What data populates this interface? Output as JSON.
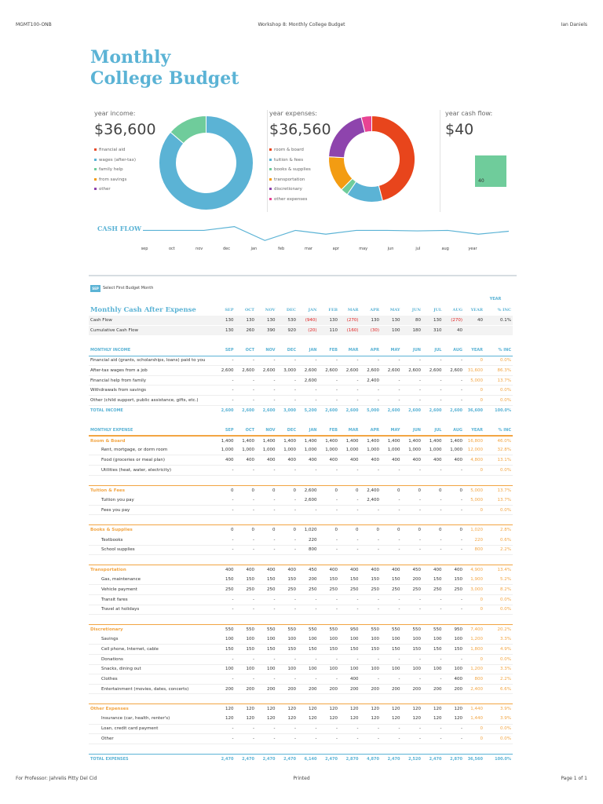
{
  "header": {
    "left": "MGMT100-ONB",
    "center": "Workshop 8: Monthly College Budget",
    "right": "Ian Daniels"
  },
  "title_line1": "Monthly",
  "title_line2": "College Budget",
  "income_panel": {
    "title": "year income:",
    "value": "$36,600",
    "legend": [
      "financial aid",
      "wages (after-tax)",
      "family help",
      "from savings",
      "other"
    ],
    "colors": [
      "#e74c2c",
      "#5bb3d5",
      "#6fcc9b",
      "#f39c12",
      "#8e44ad"
    ],
    "slices": [
      0,
      31600,
      5000,
      0,
      0
    ]
  },
  "expense_panel": {
    "title": "year expenses:",
    "value": "$36,560",
    "legend": [
      "room & board",
      "tuition & fees",
      "books & supplies",
      "transportation",
      "discretionary",
      "other expenses"
    ],
    "colors": [
      "#e8451c",
      "#5bb3d5",
      "#6fcc9b",
      "#f39c12",
      "#8e44ad",
      "#e84393"
    ],
    "slices": [
      16800,
      5000,
      1020,
      4900,
      7400,
      1440
    ]
  },
  "cashflow_panel": {
    "title": "year cash flow:",
    "value": "$40",
    "bar_value": "40",
    "bar_color": "#6fcc9b"
  },
  "cashflow_chart": {
    "label": "CASH FLOW",
    "months": [
      "sep",
      "oct",
      "nov",
      "dec",
      "jan",
      "feb",
      "mar",
      "apr",
      "may",
      "jun",
      "jul",
      "aug",
      "year"
    ],
    "values": [
      130,
      130,
      130,
      530,
      -940,
      130,
      -270,
      130,
      130,
      80,
      130,
      -270,
      40
    ]
  },
  "selector": {
    "box": "SEP",
    "label": "Select First Budget Month"
  },
  "year_header": "YEAR",
  "columns": [
    "SEP",
    "OCT",
    "NOV",
    "DEC",
    "JAN",
    "FEB",
    "MAR",
    "APR",
    "MAY",
    "JUN",
    "JUL",
    "AUG",
    "YEAR",
    "% INC"
  ],
  "sections": [
    {
      "type": "bigtitle",
      "label": "Monthly Cash After Expense"
    },
    {
      "type": "cf",
      "label": "Cash Flow",
      "cells": [
        "130",
        "130",
        "130",
        "530",
        "(940)",
        "130",
        "(270)",
        "130",
        "130",
        "80",
        "130",
        "(270)",
        "40",
        "0.1%"
      ]
    },
    {
      "type": "cf",
      "label": "Cumulative Cash Flow",
      "cells": [
        "130",
        "260",
        "390",
        "920",
        "(20)",
        "110",
        "(160)",
        "(30)",
        "100",
        "180",
        "310",
        "40",
        "",
        ""
      ]
    },
    {
      "type": "spacer"
    },
    {
      "type": "inchdr",
      "label": "MONTHLY INCOME"
    },
    {
      "type": "row",
      "label": "Financial aid (grants, scholarships, loans) paid to you",
      "cells": [
        "-",
        "-",
        "-",
        "-",
        "-",
        "-",
        "-",
        "-",
        "-",
        "-",
        "-",
        "-",
        "0",
        "0.0%"
      ]
    },
    {
      "type": "row",
      "label": "After-tax wages from a job",
      "cells": [
        "2,600",
        "2,600",
        "2,600",
        "3,000",
        "2,600",
        "2,600",
        "2,600",
        "2,600",
        "2,600",
        "2,600",
        "2,600",
        "2,600",
        "31,600",
        "86.3%"
      ]
    },
    {
      "type": "row",
      "label": "Financial help from family",
      "cells": [
        "-",
        "-",
        "-",
        "-",
        "2,600",
        "-",
        "-",
        "2,400",
        "-",
        "-",
        "-",
        "-",
        "5,000",
        "13.7%"
      ]
    },
    {
      "type": "row",
      "label": "Withdrawals from savings",
      "cells": [
        "-",
        "-",
        "-",
        "-",
        "-",
        "-",
        "-",
        "-",
        "-",
        "-",
        "-",
        "-",
        "0",
        "0.0%"
      ]
    },
    {
      "type": "row",
      "label": "Other (child support, public assistance, gifts, etc.)",
      "cells": [
        "-",
        "-",
        "-",
        "-",
        "-",
        "-",
        "-",
        "-",
        "-",
        "-",
        "-",
        "-",
        "0",
        "0.0%"
      ]
    },
    {
      "type": "total",
      "label": "TOTAL INCOME",
      "cells": [
        "2,600",
        "2,600",
        "2,600",
        "3,000",
        "5,200",
        "2,600",
        "2,600",
        "5,000",
        "2,600",
        "2,600",
        "2,600",
        "2,600",
        "36,600",
        "100.0%"
      ]
    },
    {
      "type": "spacer"
    },
    {
      "type": "exphdr",
      "label": "MONTHLY EXPENSE"
    },
    {
      "type": "cat",
      "label": "Room & Board",
      "cells": [
        "1,400",
        "1,400",
        "1,400",
        "1,400",
        "1,400",
        "1,400",
        "1,400",
        "1,400",
        "1,400",
        "1,400",
        "1,400",
        "1,400",
        "16,800",
        "46.0%"
      ]
    },
    {
      "type": "sub",
      "label": "Rent, mortgage, or dorm room",
      "cells": [
        "1,000",
        "1,000",
        "1,000",
        "1,000",
        "1,000",
        "1,000",
        "1,000",
        "1,000",
        "1,000",
        "1,000",
        "1,000",
        "1,000",
        "12,000",
        "32.8%"
      ]
    },
    {
      "type": "sub",
      "label": "Food (groceries or meal plan)",
      "cells": [
        "400",
        "400",
        "400",
        "400",
        "400",
        "400",
        "400",
        "400",
        "400",
        "400",
        "400",
        "400",
        "4,800",
        "13.1%"
      ]
    },
    {
      "type": "sub",
      "label": "Utilities (heat, water, electricity)",
      "cells": [
        "-",
        "-",
        "-",
        "-",
        "-",
        "-",
        "-",
        "-",
        "-",
        "-",
        "-",
        "-",
        "0",
        "0.0%"
      ]
    },
    {
      "type": "spacer"
    },
    {
      "type": "cat",
      "label": "Tuition & Fees",
      "cells": [
        "0",
        "0",
        "0",
        "0",
        "2,600",
        "0",
        "0",
        "2,400",
        "0",
        "0",
        "0",
        "0",
        "5,000",
        "13.7%"
      ]
    },
    {
      "type": "sub",
      "label": "Tuition you pay",
      "cells": [
        "-",
        "-",
        "-",
        "-",
        "2,600",
        "-",
        "-",
        "2,400",
        "-",
        "-",
        "-",
        "-",
        "5,000",
        "13.7%"
      ]
    },
    {
      "type": "sub",
      "label": "Fees you pay",
      "cells": [
        "-",
        "-",
        "-",
        "-",
        "-",
        "-",
        "-",
        "-",
        "-",
        "-",
        "-",
        "-",
        "0",
        "0.0%"
      ]
    },
    {
      "type": "spacer"
    },
    {
      "type": "cat",
      "label": "Books & Supplies",
      "cells": [
        "0",
        "0",
        "0",
        "0",
        "1,020",
        "0",
        "0",
        "0",
        "0",
        "0",
        "0",
        "0",
        "1,020",
        "2.8%"
      ]
    },
    {
      "type": "sub",
      "label": "Textbooks",
      "cells": [
        "-",
        "-",
        "-",
        "-",
        "220",
        "-",
        "-",
        "-",
        "-",
        "-",
        "-",
        "-",
        "220",
        "0.6%"
      ]
    },
    {
      "type": "sub",
      "label": "School supplies",
      "cells": [
        "-",
        "-",
        "-",
        "-",
        "800",
        "-",
        "-",
        "-",
        "-",
        "-",
        "-",
        "-",
        "800",
        "2.2%"
      ]
    },
    {
      "type": "spacer"
    },
    {
      "type": "cat",
      "label": "Transportation",
      "cells": [
        "400",
        "400",
        "400",
        "400",
        "450",
        "400",
        "400",
        "400",
        "400",
        "450",
        "400",
        "400",
        "4,900",
        "13.4%"
      ]
    },
    {
      "type": "sub",
      "label": "Gas, maintenance",
      "cells": [
        "150",
        "150",
        "150",
        "150",
        "200",
        "150",
        "150",
        "150",
        "150",
        "200",
        "150",
        "150",
        "1,900",
        "5.2%"
      ]
    },
    {
      "type": "sub",
      "label": "Vehicle payment",
      "cells": [
        "250",
        "250",
        "250",
        "250",
        "250",
        "250",
        "250",
        "250",
        "250",
        "250",
        "250",
        "250",
        "3,000",
        "8.2%"
      ]
    },
    {
      "type": "sub",
      "label": "Transit fares",
      "cells": [
        "-",
        "-",
        "-",
        "-",
        "-",
        "-",
        "-",
        "-",
        "-",
        "-",
        "-",
        "-",
        "0",
        "0.0%"
      ]
    },
    {
      "type": "sub",
      "label": "Travel at holidays",
      "cells": [
        "-",
        "-",
        "-",
        "-",
        "-",
        "-",
        "-",
        "-",
        "-",
        "-",
        "-",
        "-",
        "0",
        "0.0%"
      ]
    },
    {
      "type": "spacer"
    },
    {
      "type": "cat",
      "label": "Discretionary",
      "cells": [
        "550",
        "550",
        "550",
        "550",
        "550",
        "550",
        "950",
        "550",
        "550",
        "550",
        "550",
        "950",
        "7,400",
        "20.2%"
      ]
    },
    {
      "type": "sub",
      "label": "Savings",
      "cells": [
        "100",
        "100",
        "100",
        "100",
        "100",
        "100",
        "100",
        "100",
        "100",
        "100",
        "100",
        "100",
        "1,200",
        "3.3%"
      ]
    },
    {
      "type": "sub",
      "label": "Cell phone, Internet, cable",
      "cells": [
        "150",
        "150",
        "150",
        "150",
        "150",
        "150",
        "150",
        "150",
        "150",
        "150",
        "150",
        "150",
        "1,800",
        "4.9%"
      ]
    },
    {
      "type": "sub",
      "label": "Donations",
      "cells": [
        "-",
        "-",
        "-",
        "-",
        "-",
        "-",
        "-",
        "-",
        "-",
        "-",
        "-",
        "-",
        "0",
        "0.0%"
      ]
    },
    {
      "type": "sub",
      "label": "Snacks, dining out",
      "cells": [
        "100",
        "100",
        "100",
        "100",
        "100",
        "100",
        "100",
        "100",
        "100",
        "100",
        "100",
        "100",
        "1,200",
        "3.3%"
      ]
    },
    {
      "type": "sub",
      "label": "Clothes",
      "cells": [
        "-",
        "-",
        "-",
        "-",
        "-",
        "-",
        "400",
        "-",
        "-",
        "-",
        "-",
        "400",
        "800",
        "2.2%"
      ]
    },
    {
      "type": "sub",
      "label": "Entertainment (movies, dates, concerts)",
      "cells": [
        "200",
        "200",
        "200",
        "200",
        "200",
        "200",
        "200",
        "200",
        "200",
        "200",
        "200",
        "200",
        "2,400",
        "6.6%"
      ]
    },
    {
      "type": "spacer"
    },
    {
      "type": "cat",
      "label": "Other Expenses",
      "cells": [
        "120",
        "120",
        "120",
        "120",
        "120",
        "120",
        "120",
        "120",
        "120",
        "120",
        "120",
        "120",
        "1,440",
        "3.9%"
      ]
    },
    {
      "type": "sub",
      "label": "Insurance (car, health, renter's)",
      "cells": [
        "120",
        "120",
        "120",
        "120",
        "120",
        "120",
        "120",
        "120",
        "120",
        "120",
        "120",
        "120",
        "1,440",
        "3.9%"
      ]
    },
    {
      "type": "sub",
      "label": "Loan, credit card payment",
      "cells": [
        "-",
        "-",
        "-",
        "-",
        "-",
        "-",
        "-",
        "-",
        "-",
        "-",
        "-",
        "-",
        "0",
        "0.0%"
      ]
    },
    {
      "type": "sub",
      "label": "Other",
      "cells": [
        "-",
        "-",
        "-",
        "-",
        "-",
        "-",
        "-",
        "-",
        "-",
        "-",
        "-",
        "-",
        "0",
        "0.0%"
      ]
    },
    {
      "type": "spacer"
    },
    {
      "type": "total",
      "label": "TOTAL EXPENSES",
      "cells": [
        "2,470",
        "2,470",
        "2,470",
        "2,470",
        "6,140",
        "2,470",
        "2,870",
        "4,870",
        "2,470",
        "2,520",
        "2,470",
        "2,870",
        "36,560",
        "100.0%"
      ]
    }
  ],
  "footer": {
    "left": "For Professor: Jahrelis Pitty Del Cid",
    "center": "Printed",
    "right": "Page 1 of 1"
  }
}
